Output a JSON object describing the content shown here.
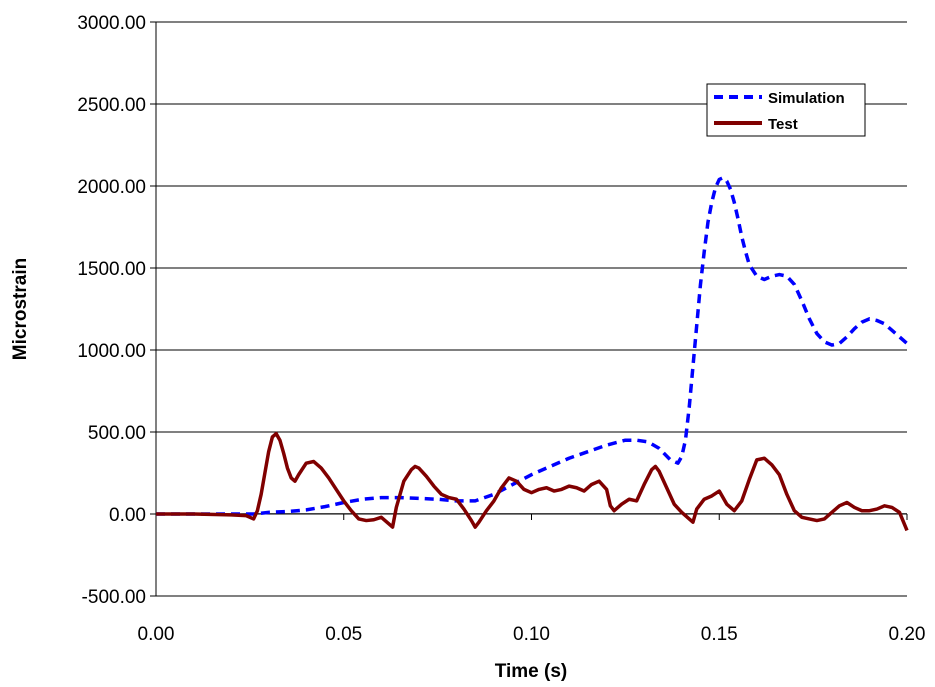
{
  "chart_data": {
    "type": "line",
    "title": "",
    "xlabel": "Time (s)",
    "ylabel": "Microstrain",
    "xlim": [
      0,
      0.2
    ],
    "ylim": [
      -500,
      3000
    ],
    "x_ticks": [
      0,
      0.05,
      0.1,
      0.15,
      0.2
    ],
    "x_tick_labels": [
      "0.00",
      "0.05",
      "0.10",
      "0.15",
      "0.20"
    ],
    "y_ticks": [
      -500,
      0,
      500,
      1000,
      1500,
      2000,
      2500,
      3000
    ],
    "y_tick_labels": [
      "-500.00",
      "0.00",
      "500.00",
      "1000.00",
      "1500.00",
      "2000.00",
      "2500.00",
      "3000.00"
    ],
    "grid": "horizontal",
    "legend_position": "top-right",
    "series": [
      {
        "name": "Simulation",
        "color": "#0000ff",
        "style": "dashed",
        "x": [
          0.0,
          0.026,
          0.03,
          0.035,
          0.04,
          0.045,
          0.05,
          0.055,
          0.06,
          0.065,
          0.07,
          0.075,
          0.08,
          0.085,
          0.09,
          0.095,
          0.1,
          0.105,
          0.11,
          0.115,
          0.12,
          0.125,
          0.128,
          0.131,
          0.134,
          0.137,
          0.139,
          0.14,
          0.141,
          0.142,
          0.143,
          0.144,
          0.145,
          0.146,
          0.147,
          0.148,
          0.149,
          0.15,
          0.151,
          0.152,
          0.153,
          0.154,
          0.155,
          0.156,
          0.157,
          0.158,
          0.16,
          0.162,
          0.164,
          0.166,
          0.168,
          0.17,
          0.172,
          0.174,
          0.176,
          0.178,
          0.18,
          0.182,
          0.184,
          0.186,
          0.188,
          0.19,
          0.192,
          0.194,
          0.196,
          0.198,
          0.2
        ],
        "values": [
          0,
          0,
          10,
          15,
          25,
          45,
          70,
          90,
          100,
          100,
          95,
          90,
          80,
          80,
          120,
          180,
          240,
          290,
          340,
          380,
          420,
          450,
          450,
          440,
          400,
          330,
          310,
          350,
          450,
          650,
          900,
          1150,
          1400,
          1600,
          1780,
          1900,
          1990,
          2040,
          2050,
          2030,
          1980,
          1900,
          1800,
          1690,
          1600,
          1520,
          1450,
          1430,
          1450,
          1460,
          1450,
          1400,
          1300,
          1190,
          1100,
          1050,
          1030,
          1040,
          1080,
          1130,
          1170,
          1190,
          1180,
          1160,
          1120,
          1080,
          1040
        ]
      },
      {
        "name": "Test",
        "color": "#800000",
        "style": "solid",
        "x": [
          0.0,
          0.01,
          0.02,
          0.024,
          0.026,
          0.027,
          0.028,
          0.029,
          0.03,
          0.031,
          0.032,
          0.033,
          0.034,
          0.035,
          0.036,
          0.037,
          0.038,
          0.04,
          0.042,
          0.044,
          0.046,
          0.048,
          0.05,
          0.052,
          0.054,
          0.056,
          0.058,
          0.06,
          0.062,
          0.063,
          0.064,
          0.066,
          0.068,
          0.069,
          0.07,
          0.072,
          0.074,
          0.076,
          0.078,
          0.08,
          0.082,
          0.084,
          0.085,
          0.086,
          0.088,
          0.09,
          0.092,
          0.094,
          0.096,
          0.098,
          0.1,
          0.102,
          0.104,
          0.106,
          0.108,
          0.11,
          0.112,
          0.114,
          0.116,
          0.118,
          0.12,
          0.121,
          0.122,
          0.124,
          0.126,
          0.128,
          0.13,
          0.132,
          0.133,
          0.134,
          0.136,
          0.138,
          0.14,
          0.142,
          0.143,
          0.144,
          0.146,
          0.148,
          0.15,
          0.152,
          0.154,
          0.156,
          0.158,
          0.16,
          0.162,
          0.163,
          0.164,
          0.166,
          0.168,
          0.17,
          0.172,
          0.174,
          0.176,
          0.178,
          0.18,
          0.182,
          0.184,
          0.186,
          0.188,
          0.19,
          0.192,
          0.194,
          0.196,
          0.198,
          0.2
        ],
        "values": [
          0,
          0,
          -5,
          -10,
          -30,
          20,
          120,
          250,
          380,
          470,
          490,
          450,
          370,
          280,
          220,
          200,
          240,
          310,
          320,
          280,
          220,
          150,
          80,
          20,
          -30,
          -40,
          -35,
          -20,
          -60,
          -80,
          40,
          200,
          270,
          290,
          280,
          230,
          170,
          120,
          100,
          90,
          30,
          -40,
          -80,
          -50,
          20,
          80,
          160,
          220,
          200,
          150,
          130,
          150,
          160,
          140,
          150,
          170,
          160,
          140,
          180,
          200,
          150,
          50,
          20,
          60,
          90,
          80,
          180,
          270,
          290,
          260,
          160,
          60,
          10,
          -30,
          -50,
          30,
          90,
          110,
          140,
          60,
          20,
          80,
          210,
          330,
          340,
          320,
          300,
          240,
          120,
          20,
          -20,
          -30,
          -40,
          -30,
          10,
          50,
          70,
          40,
          20,
          20,
          30,
          50,
          40,
          10,
          -100
        ]
      }
    ]
  }
}
